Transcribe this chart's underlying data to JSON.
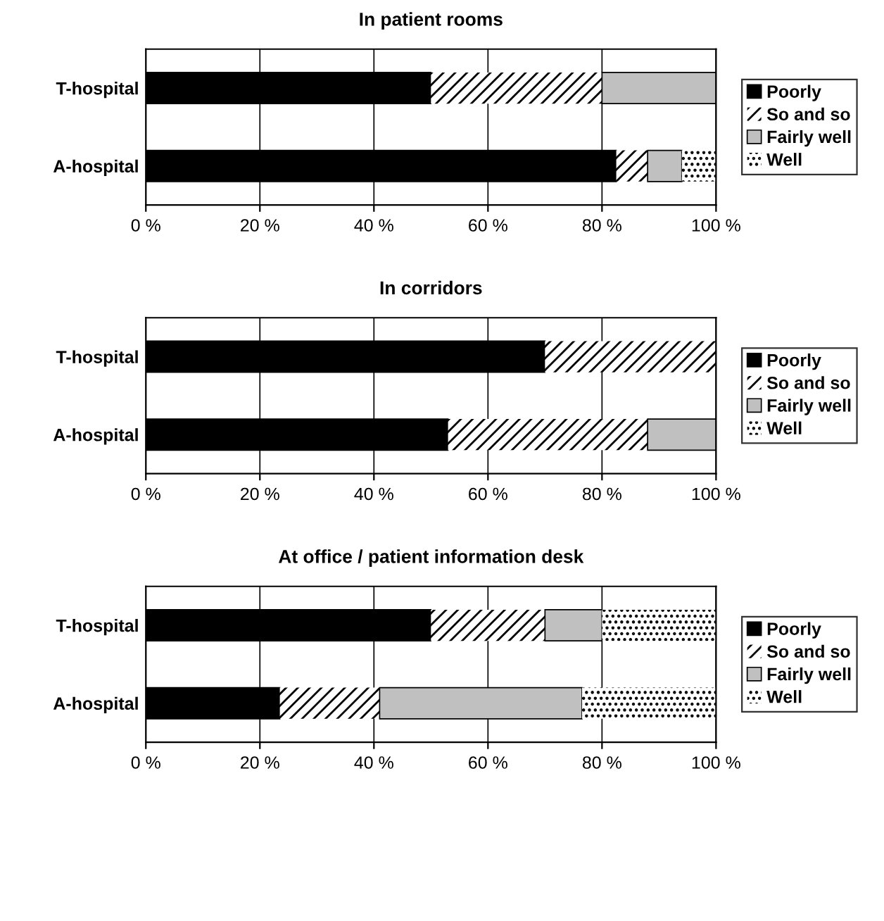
{
  "chart_data": [
    {
      "type": "bar",
      "title": "In patient rooms",
      "orientation": "horizontal",
      "stacked": true,
      "categories": [
        "T-hospital",
        "A-hospital"
      ],
      "series": [
        {
          "name": "Poorly",
          "color": "#000000",
          "values": [
            50,
            82.5
          ]
        },
        {
          "name": "So and so",
          "color": "#ffffff",
          "values": [
            30,
            5.5
          ]
        },
        {
          "name": "Fairly well",
          "color": "#c0c0c0",
          "values": [
            20,
            6
          ]
        },
        {
          "name": "Well",
          "color": "#ffffff",
          "values": [
            0,
            6
          ]
        }
      ],
      "xlim": [
        0,
        100
      ],
      "xticks": [
        {
          "value": 0,
          "label": "0 %"
        },
        {
          "value": 20,
          "label": "20 %"
        },
        {
          "value": 40,
          "label": "40 %"
        },
        {
          "value": 60,
          "label": "60 %"
        },
        {
          "value": 80,
          "label": "80 %"
        },
        {
          "value": 100,
          "label": "100 %"
        }
      ],
      "grid": "x",
      "legend": "right"
    },
    {
      "type": "bar",
      "title": "In corridors",
      "orientation": "horizontal",
      "stacked": true,
      "categories": [
        "T-hospital",
        "A-hospital"
      ],
      "series": [
        {
          "name": "Poorly",
          "color": "#000000",
          "values": [
            70,
            53
          ]
        },
        {
          "name": "So and so",
          "color": "#ffffff",
          "values": [
            30,
            35
          ]
        },
        {
          "name": "Fairly well",
          "color": "#c0c0c0",
          "values": [
            0,
            12
          ]
        },
        {
          "name": "Well",
          "color": "#ffffff",
          "values": [
            0,
            0
          ]
        }
      ],
      "xlim": [
        0,
        100
      ],
      "xticks": [
        {
          "value": 0,
          "label": "0 %"
        },
        {
          "value": 20,
          "label": "20 %"
        },
        {
          "value": 40,
          "label": "40 %"
        },
        {
          "value": 60,
          "label": "60 %"
        },
        {
          "value": 80,
          "label": "80 %"
        },
        {
          "value": 100,
          "label": "100 %"
        }
      ],
      "grid": "x",
      "legend": "right"
    },
    {
      "type": "bar",
      "title": "At office / patient information desk",
      "orientation": "horizontal",
      "stacked": true,
      "categories": [
        "T-hospital",
        "A-hospital"
      ],
      "series": [
        {
          "name": "Poorly",
          "color": "#000000",
          "values": [
            50,
            23.5
          ]
        },
        {
          "name": "So and so",
          "color": "#ffffff",
          "values": [
            20,
            17.5
          ]
        },
        {
          "name": "Fairly well",
          "color": "#c0c0c0",
          "values": [
            10,
            35.5
          ]
        },
        {
          "name": "Well",
          "color": "#ffffff",
          "values": [
            20,
            23.5
          ]
        }
      ],
      "xlim": [
        0,
        100
      ],
      "xticks": [
        {
          "value": 0,
          "label": "0 %"
        },
        {
          "value": 20,
          "label": "20 %"
        },
        {
          "value": 40,
          "label": "40 %"
        },
        {
          "value": 60,
          "label": "60 %"
        },
        {
          "value": 80,
          "label": "80 %"
        },
        {
          "value": 100,
          "label": "100 %"
        }
      ],
      "grid": "x",
      "legend": "right"
    }
  ]
}
